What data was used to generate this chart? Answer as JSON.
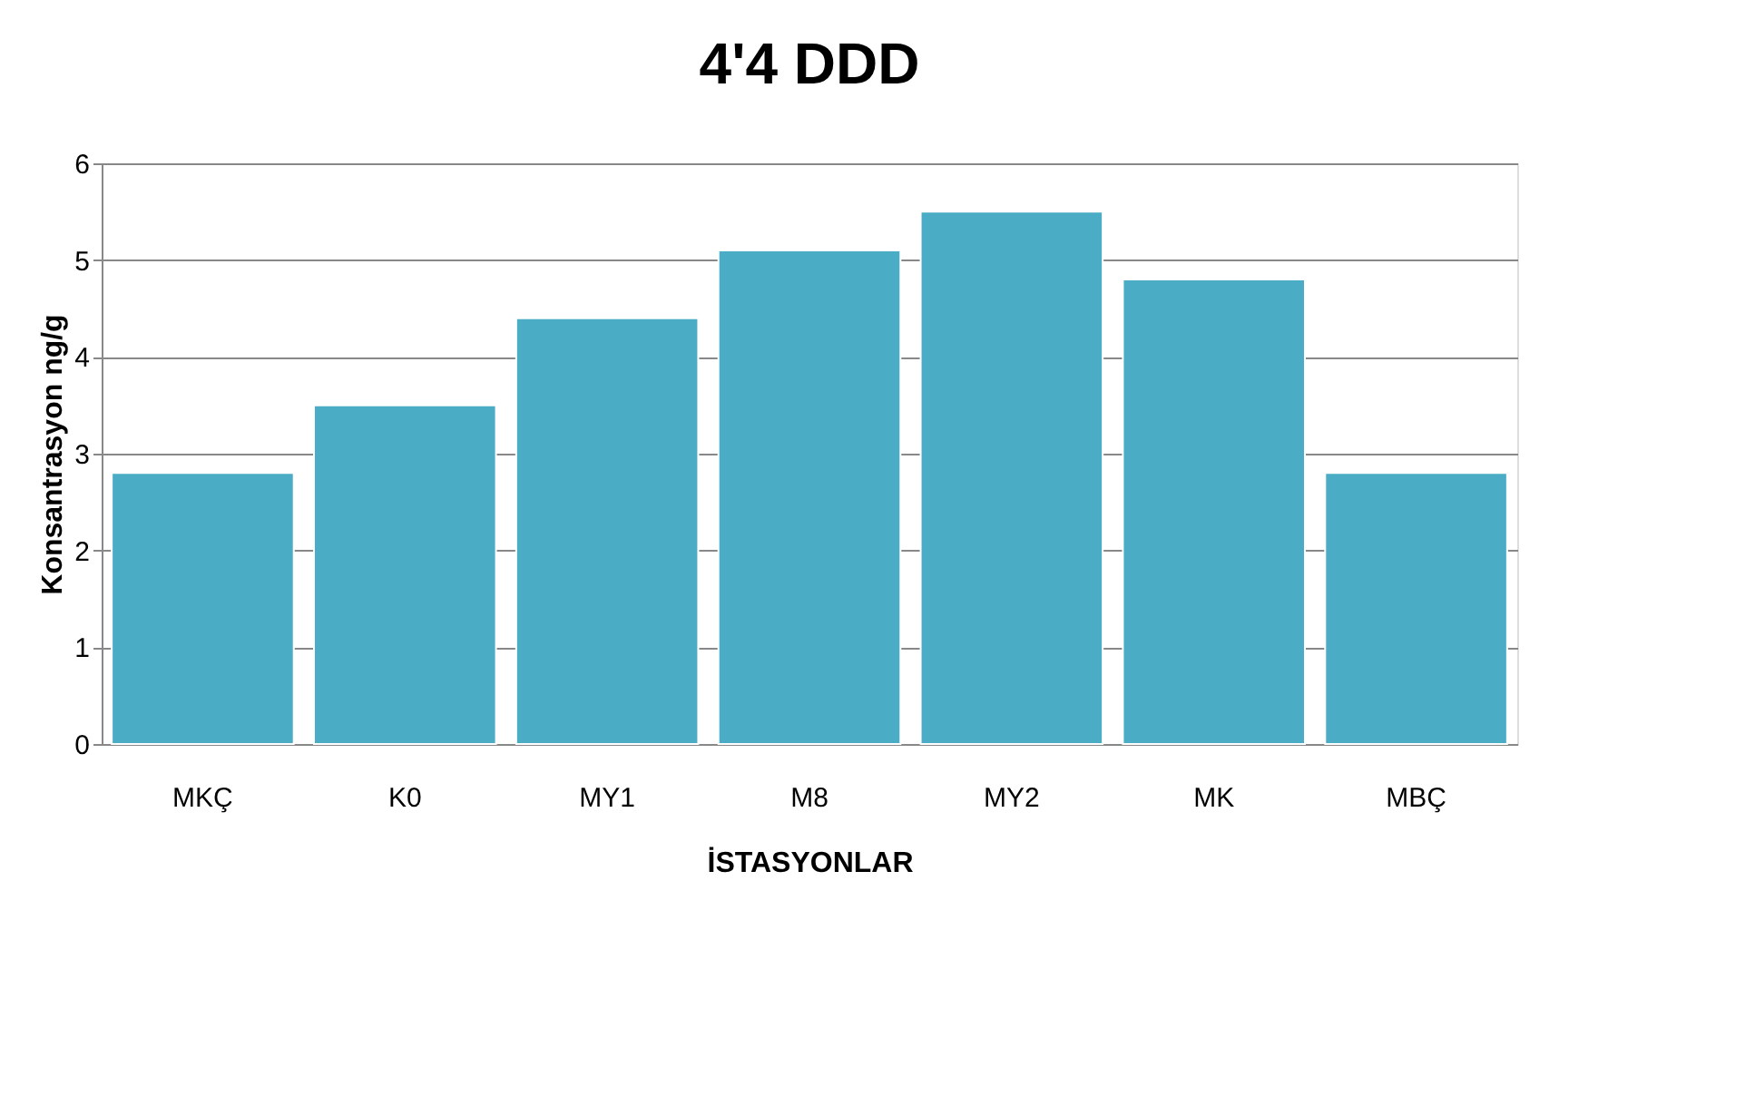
{
  "chart_data": {
    "type": "bar",
    "title": "4'4 DDD",
    "xlabel": "İSTASYONLAR",
    "ylabel": "Konsantrasyon ng/g",
    "categories": [
      "MKÇ",
      "K0",
      "MY1",
      "M8",
      "MY2",
      "MK",
      "MBÇ"
    ],
    "values": [
      2.8,
      3.5,
      4.4,
      5.1,
      5.5,
      4.8,
      2.8
    ],
    "color": "#4bacc6",
    "ylim": [
      0,
      6
    ],
    "yticks": [
      0,
      1,
      2,
      3,
      4,
      5,
      6
    ],
    "grid": "y"
  }
}
